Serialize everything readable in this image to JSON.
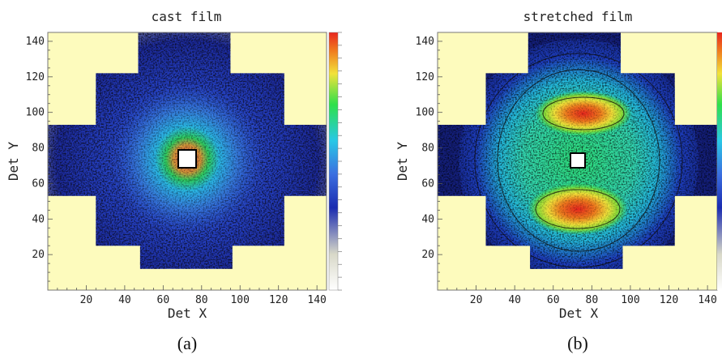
{
  "chart_data": [
    {
      "type": "heatmap",
      "title": "cast film",
      "xlabel": "Det X",
      "ylabel": "Det Y",
      "xlim": [
        0,
        145
      ],
      "ylim": [
        0,
        145
      ],
      "x_ticks": [
        20,
        40,
        60,
        80,
        100,
        120,
        140
      ],
      "y_ticks": [
        20,
        40,
        60,
        80,
        100,
        120,
        140
      ],
      "detector_mask": "cross-shaped detector area, beam-stop square near (71, 73)",
      "pattern": "isotropic diffuse scattering; intensity peaks in a ring around the beam stop",
      "colorbar": true,
      "panel_label": "(a)",
      "background_color": "#fdfbbd",
      "colormap": [
        "#ffffff",
        "#1a2bb0",
        "#3b6fe0",
        "#29c8e6",
        "#2ee04a",
        "#f2e23a",
        "#f07a1e",
        "#e8261e"
      ]
    },
    {
      "type": "heatmap",
      "title": "stretched film",
      "xlabel": "Det X",
      "ylabel": "Det Y",
      "xlim": [
        0,
        145
      ],
      "ylim": [
        0,
        145
      ],
      "x_ticks": [
        20,
        40,
        60,
        80,
        100,
        120,
        140
      ],
      "y_ticks": [
        20,
        40,
        60,
        80,
        100,
        120,
        140
      ],
      "detector_mask": "cross-shaped detector area, beam-stop square near (71, 73)",
      "pattern": "anisotropic scattering; two red/orange arcs centred near (75, 100) and (72, 46)",
      "colorbar": true,
      "panel_label": "(b)",
      "background_color": "#fdfbbd",
      "colormap": [
        "#ffffff",
        "#1a2bb0",
        "#3b6fe0",
        "#29c8e6",
        "#2ee04a",
        "#f2e23a",
        "#f07a1e",
        "#e8261e"
      ]
    }
  ]
}
